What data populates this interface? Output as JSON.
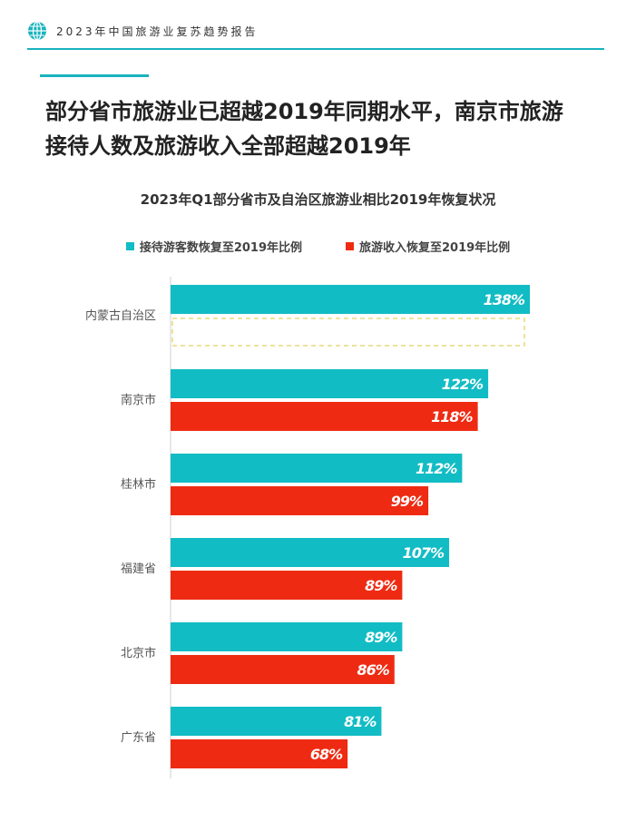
{
  "header": {
    "report_title": "2023年中国旅游业复苏趋势报告"
  },
  "headline": {
    "line1": "部分省市旅游业已超越2019年同期水平，南京市旅游",
    "line2": "接待人数及旅游收入全部超越2019年"
  },
  "colors": {
    "accent": "#18b3be",
    "visitors": "#12bcc4",
    "revenue": "#ee2b12",
    "missing_outline": "#e8d87a"
  },
  "chart_data": {
    "type": "bar",
    "orientation": "horizontal",
    "title": "2023年Q1部分省市及自治区旅游业相比2019年恢复状况",
    "legend_position": "top",
    "categories": [
      "内蒙古自治区",
      "南京市",
      "桂林市",
      "福建省",
      "北京市",
      "广东省"
    ],
    "series": [
      {
        "name": "接待游客数恢复至2019年比例",
        "values": [
          138,
          122,
          112,
          107,
          89,
          81
        ],
        "labels": [
          "138%",
          "122%",
          "112%",
          "107%",
          "89%",
          "81%"
        ]
      },
      {
        "name": "旅游收入恢复至2019年比例",
        "values": [
          null,
          118,
          99,
          89,
          86,
          68
        ],
        "labels": [
          "",
          "118%",
          "99%",
          "89%",
          "86%",
          "68%"
        ]
      }
    ],
    "xlim": [
      0,
      138
    ],
    "grid": false
  }
}
